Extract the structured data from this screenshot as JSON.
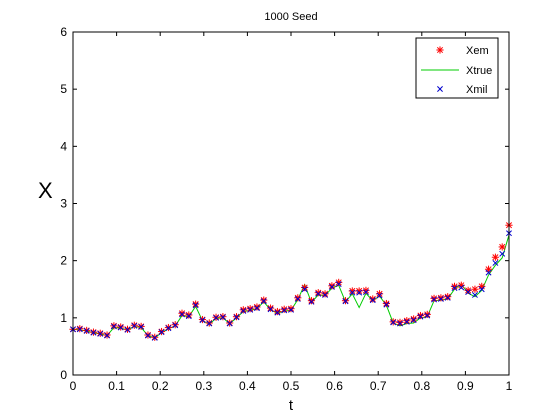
{
  "chart_data": {
    "type": "line",
    "title": "1000 Seed",
    "xlabel": "t",
    "ylabel": "X",
    "xlim": [
      0,
      1
    ],
    "ylim": [
      0,
      6
    ],
    "xticks": [
      0,
      0.1,
      0.2,
      0.3,
      0.4,
      0.5,
      0.6,
      0.7,
      0.8,
      0.9,
      1
    ],
    "xtick_labels": [
      "0",
      "0.1",
      "0.2",
      "0.3",
      "0.4",
      "0.5",
      "0.6",
      "0.7",
      "0.8",
      "0.9",
      "1"
    ],
    "yticks": [
      0,
      1,
      2,
      3,
      4,
      5,
      6
    ],
    "ytick_labels": [
      "0",
      "1",
      "2",
      "3",
      "4",
      "5",
      "6"
    ],
    "grid": false,
    "legend_position": "top-right",
    "series": [
      {
        "name": "Xem",
        "style": "markers",
        "marker": "*",
        "color": "#ff0000",
        "x": [
          0.0,
          0.0156,
          0.0313,
          0.0469,
          0.0625,
          0.0781,
          0.0938,
          0.1094,
          0.125,
          0.1406,
          0.1563,
          0.1719,
          0.1875,
          0.2031,
          0.2188,
          0.2344,
          0.25,
          0.2656,
          0.2813,
          0.2969,
          0.3125,
          0.3281,
          0.3438,
          0.3594,
          0.375,
          0.3906,
          0.4063,
          0.4219,
          0.4375,
          0.4531,
          0.4688,
          0.4844,
          0.5,
          0.5156,
          0.5313,
          0.5469,
          0.5625,
          0.5781,
          0.5938,
          0.6094,
          0.625,
          0.6406,
          0.6563,
          0.6719,
          0.6875,
          0.7031,
          0.7188,
          0.7344,
          0.75,
          0.7656,
          0.7813,
          0.7969,
          0.8125,
          0.8281,
          0.8438,
          0.8594,
          0.875,
          0.8906,
          0.9063,
          0.9219,
          0.9375,
          0.9531,
          0.9688,
          0.9844,
          1.0
        ],
        "y": [
          0.8,
          0.81,
          0.78,
          0.75,
          0.73,
          0.7,
          0.86,
          0.84,
          0.8,
          0.87,
          0.85,
          0.7,
          0.66,
          0.76,
          0.83,
          0.88,
          1.08,
          1.05,
          1.24,
          0.97,
          0.91,
          1.01,
          1.02,
          0.91,
          1.02,
          1.14,
          1.16,
          1.19,
          1.31,
          1.17,
          1.11,
          1.15,
          1.16,
          1.35,
          1.53,
          1.3,
          1.44,
          1.42,
          1.56,
          1.62,
          1.3,
          1.47,
          1.47,
          1.48,
          1.33,
          1.42,
          1.25,
          0.93,
          0.92,
          0.95,
          0.98,
          1.04,
          1.06,
          1.34,
          1.35,
          1.37,
          1.55,
          1.57,
          1.48,
          1.5,
          1.55,
          1.85,
          2.06,
          2.24,
          2.62
        ]
      },
      {
        "name": "Xtrue",
        "style": "line",
        "color": "#00cc00",
        "x": [
          0.0,
          0.0156,
          0.0313,
          0.0469,
          0.0625,
          0.0781,
          0.0938,
          0.1094,
          0.125,
          0.1406,
          0.1563,
          0.1719,
          0.1875,
          0.2031,
          0.2188,
          0.2344,
          0.25,
          0.2656,
          0.2813,
          0.2969,
          0.3125,
          0.3281,
          0.3438,
          0.3594,
          0.375,
          0.3906,
          0.4063,
          0.4219,
          0.4375,
          0.4531,
          0.4688,
          0.4844,
          0.5,
          0.5156,
          0.5313,
          0.5469,
          0.5625,
          0.5781,
          0.5938,
          0.6094,
          0.625,
          0.6406,
          0.6563,
          0.6719,
          0.6875,
          0.7031,
          0.7188,
          0.7344,
          0.75,
          0.7656,
          0.7813,
          0.7969,
          0.8125,
          0.8281,
          0.8438,
          0.8594,
          0.875,
          0.8906,
          0.9063,
          0.9219,
          0.9375,
          0.9531,
          0.9688,
          0.9844,
          1.0
        ],
        "y": [
          0.8,
          0.79,
          0.77,
          0.74,
          0.72,
          0.69,
          0.83,
          0.82,
          0.79,
          0.85,
          0.83,
          0.69,
          0.65,
          0.74,
          0.81,
          0.86,
          1.04,
          1.02,
          1.2,
          0.95,
          0.89,
          0.99,
          1.0,
          0.9,
          1.0,
          1.11,
          1.13,
          1.16,
          1.28,
          1.14,
          1.08,
          1.12,
          1.13,
          1.32,
          1.58,
          1.27,
          1.4,
          1.39,
          1.52,
          1.57,
          1.28,
          1.42,
          1.18,
          1.43,
          1.3,
          1.38,
          1.22,
          0.91,
          0.86,
          0.9,
          0.91,
          1.0,
          1.02,
          1.3,
          1.31,
          1.33,
          1.5,
          1.59,
          1.43,
          1.37,
          1.48,
          1.75,
          1.92,
          2.05,
          2.45
        ]
      },
      {
        "name": "Xmil",
        "style": "markers",
        "marker": "x",
        "color": "#0000cc",
        "x": [
          0.0,
          0.0156,
          0.0313,
          0.0469,
          0.0625,
          0.0781,
          0.0938,
          0.1094,
          0.125,
          0.1406,
          0.1563,
          0.1719,
          0.1875,
          0.2031,
          0.2188,
          0.2344,
          0.25,
          0.2656,
          0.2813,
          0.2969,
          0.3125,
          0.3281,
          0.3438,
          0.3594,
          0.375,
          0.3906,
          0.4063,
          0.4219,
          0.4375,
          0.4531,
          0.4688,
          0.4844,
          0.5,
          0.5156,
          0.5313,
          0.5469,
          0.5625,
          0.5781,
          0.5938,
          0.6094,
          0.625,
          0.6406,
          0.6563,
          0.6719,
          0.6875,
          0.7031,
          0.7188,
          0.7344,
          0.75,
          0.7656,
          0.7813,
          0.7969,
          0.8125,
          0.8281,
          0.8438,
          0.8594,
          0.875,
          0.8906,
          0.9063,
          0.9219,
          0.9375,
          0.9531,
          0.9688,
          0.9844,
          1.0
        ],
        "y": [
          0.8,
          0.8,
          0.77,
          0.74,
          0.72,
          0.69,
          0.85,
          0.83,
          0.79,
          0.86,
          0.84,
          0.69,
          0.65,
          0.75,
          0.82,
          0.87,
          1.06,
          1.03,
          1.22,
          0.96,
          0.9,
          1.0,
          1.01,
          0.9,
          1.01,
          1.12,
          1.14,
          1.17,
          1.29,
          1.15,
          1.09,
          1.13,
          1.14,
          1.33,
          1.5,
          1.28,
          1.42,
          1.4,
          1.54,
          1.59,
          1.29,
          1.44,
          1.44,
          1.45,
          1.31,
          1.39,
          1.23,
          0.92,
          0.9,
          0.93,
          0.96,
          1.02,
          1.04,
          1.32,
          1.33,
          1.35,
          1.52,
          1.53,
          1.45,
          1.4,
          1.5,
          1.79,
          1.96,
          2.12,
          2.48
        ]
      }
    ]
  }
}
